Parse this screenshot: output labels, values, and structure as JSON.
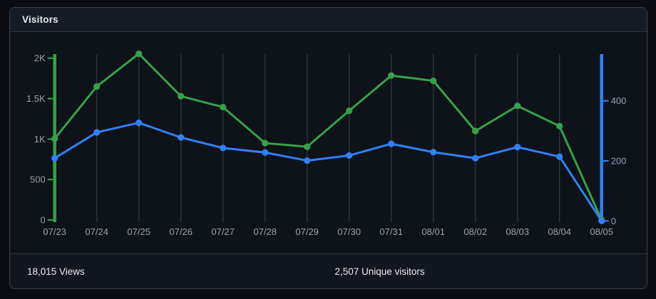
{
  "header": {
    "title": "Visitors"
  },
  "footer": {
    "stats": [
      {
        "text": "18,015 Views"
      },
      {
        "text": "2,507 Unique visitors"
      }
    ]
  },
  "colors": {
    "views_green": "#35a24a",
    "unique_blue": "#2f81f7",
    "grid_line": "#2c313a",
    "muted_text": "#99a1ac",
    "card_background": "#0e1219",
    "header_background": "#161c26",
    "page_background": "#0b0d12"
  },
  "chart_data": {
    "type": "line",
    "title": "Visitors",
    "x": [
      "07/23",
      "07/24",
      "07/25",
      "07/26",
      "07/27",
      "07/28",
      "07/29",
      "07/30",
      "07/31",
      "08/01",
      "08/02",
      "08/03",
      "08/04",
      "08/05"
    ],
    "series": [
      {
        "name": "Views",
        "axis": "left",
        "color": "#35a24a",
        "values": [
          1005,
          1650,
          2055,
          1530,
          1395,
          950,
          905,
          1350,
          1785,
          1720,
          1100,
          1410,
          1160,
          0
        ]
      },
      {
        "name": "Unique visitors",
        "axis": "right",
        "color": "#2f81f7",
        "values": [
          209,
          295,
          327,
          278,
          243,
          228,
          201,
          218,
          257,
          229,
          209,
          246,
          214,
          0
        ]
      }
    ],
    "axes": {
      "left": {
        "side": "left",
        "color": "#35a24a",
        "range": [
          0,
          2000
        ],
        "ticks": [
          {
            "label": "2K",
            "value": 2000
          },
          {
            "label": "1.5K",
            "value": 1500
          },
          {
            "label": "1K",
            "value": 1000
          },
          {
            "label": "500",
            "value": 500
          },
          {
            "label": "0",
            "value": 0
          }
        ]
      },
      "right": {
        "side": "right",
        "color": "#2f81f7",
        "range": [
          0,
          550
        ],
        "ticks": [
          {
            "label": "400",
            "value": 400
          },
          {
            "label": "200",
            "value": 200
          },
          {
            "label": "0",
            "value": 0
          }
        ]
      }
    },
    "grid": "vertical",
    "legend_position": "none"
  }
}
